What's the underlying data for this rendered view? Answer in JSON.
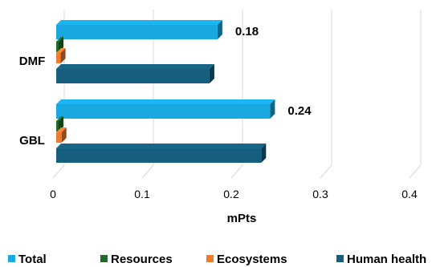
{
  "chart_data": {
    "type": "bar",
    "orientation": "horizontal",
    "style": "3d",
    "categories": [
      "DMF",
      "GBL"
    ],
    "series": [
      {
        "name": "Total",
        "color": "#19A8E0",
        "values": [
          0.181,
          0.24
        ]
      },
      {
        "name": "Resources",
        "color": "#1E6B2A",
        "values": [
          0.002,
          0.002
        ]
      },
      {
        "name": "Ecosystems",
        "color": "#F07A30",
        "values": [
          0.005,
          0.006
        ]
      },
      {
        "name": "Human health",
        "color": "#155E7E",
        "values": [
          0.172,
          0.23
        ]
      }
    ],
    "data_labels": [
      {
        "category": "DMF",
        "series": "Total",
        "text": "0.18"
      },
      {
        "category": "GBL",
        "series": "Total",
        "text": "0.24"
      }
    ],
    "xlim": [
      0,
      0.4
    ],
    "xticks": [
      0,
      0.1,
      0.2,
      0.3,
      0.4
    ],
    "xtick_labels": [
      "0",
      "0.1",
      "0.2",
      "0.3",
      "0.4"
    ],
    "xlabel": "mPts",
    "ylabel": "",
    "title": "",
    "grid": "vertical",
    "legend_position": "bottom"
  }
}
